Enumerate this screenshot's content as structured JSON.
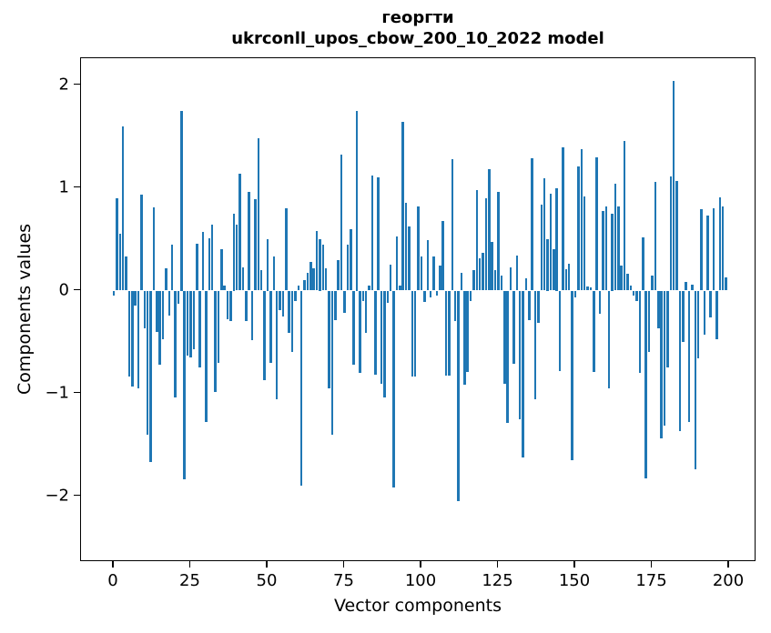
{
  "chart_data": {
    "type": "bar",
    "title_line1": "георгти",
    "title_line2": "ukrconll_upos_cbow_200_10_2022 model",
    "xlabel": "Vector components",
    "ylabel": "Components values",
    "bar_color": "#1f77b4",
    "axis_color": "#000000",
    "x_start": 0,
    "x_ticks": [
      0,
      25,
      50,
      75,
      100,
      125,
      150,
      175,
      200
    ],
    "y_ticks": [
      2,
      1,
      0,
      -1,
      -2
    ],
    "xlim": [
      -10.6,
      208.9
    ],
    "ylim": [
      -2.64,
      2.26
    ],
    "grid": false,
    "legend": null,
    "values": [
      -0.05,
      0.9,
      0.55,
      1.6,
      0.33,
      -0.84,
      -0.93,
      -0.15,
      -0.95,
      0.93,
      -0.37,
      -1.4,
      -1.67,
      0.81,
      -0.4,
      -0.72,
      -0.47,
      0.22,
      -0.24,
      0.45,
      -1.04,
      -0.13,
      1.75,
      -1.84,
      -0.63,
      -0.65,
      -0.57,
      0.46,
      -0.75,
      0.57,
      -1.28,
      0.51,
      0.64,
      -0.99,
      -0.7,
      0.4,
      0.05,
      -0.28,
      -0.3,
      0.75,
      0.64,
      1.14,
      0.23,
      -0.3,
      0.96,
      -0.48,
      0.89,
      1.48,
      0.2,
      -0.87,
      0.5,
      -0.7,
      0.33,
      -1.06,
      -0.19,
      -0.25,
      0.8,
      -0.41,
      -0.6,
      -0.1,
      0.05,
      -1.9,
      0.1,
      0.17,
      0.28,
      0.22,
      0.58,
      0.5,
      0.45,
      0.22,
      -0.95,
      -1.4,
      -0.29,
      0.3,
      1.32,
      -0.22,
      0.45,
      0.6,
      -0.72,
      1.75,
      -0.8,
      -0.1,
      -0.41,
      0.05,
      1.12,
      -0.82,
      1.1,
      -0.91,
      -1.04,
      -0.12,
      0.25,
      -1.92,
      0.53,
      0.05,
      1.64,
      0.85,
      0.62,
      -0.84,
      -0.84,
      0.82,
      0.33,
      -0.11,
      0.49,
      -0.07,
      0.33,
      -0.05,
      0.24,
      0.68,
      -0.83,
      -0.83,
      1.28,
      -0.3,
      -2.05,
      0.17,
      -0.92,
      -0.79,
      -0.1,
      0.2,
      0.98,
      0.31,
      0.37,
      0.9,
      1.18,
      0.47,
      0.2,
      0.96,
      0.15,
      -0.91,
      -1.29,
      0.23,
      -0.71,
      0.34,
      -1.25,
      -1.62,
      0.12,
      -0.29,
      1.29,
      -1.06,
      -0.31,
      0.84,
      1.09,
      0.5,
      0.94,
      0.4,
      1.0,
      -0.78,
      1.39,
      0.21,
      0.26,
      -1.65,
      -0.07,
      1.21,
      1.38,
      0.92,
      0.04,
      0.03,
      -0.79,
      1.3,
      -0.23,
      0.77,
      0.82,
      -0.95,
      0.75,
      1.04,
      0.82,
      0.24,
      1.46,
      0.16,
      0.05,
      -0.05,
      -0.1,
      -0.8,
      0.52,
      -1.83,
      -0.6,
      0.15,
      1.06,
      -0.37,
      -1.44,
      -1.31,
      -0.75,
      1.11,
      2.04,
      1.07,
      -1.37,
      -0.5,
      0.08,
      -1.28,
      0.06,
      -1.74,
      -0.66,
      0.79,
      -0.43,
      0.73,
      -0.26,
      0.8,
      -0.47,
      0.91,
      0.82,
      0.13
    ]
  }
}
